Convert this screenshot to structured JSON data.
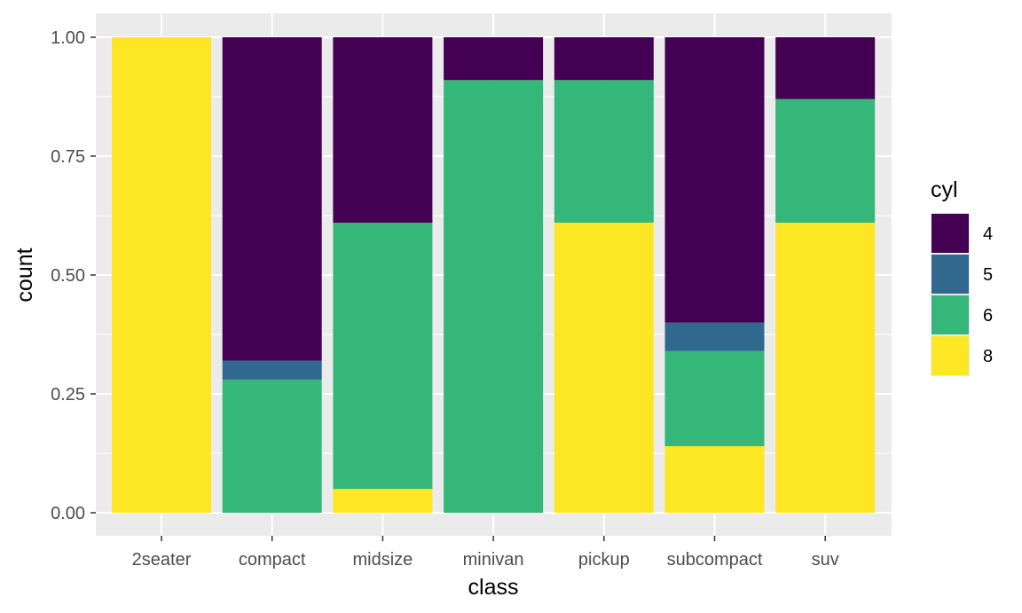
{
  "chart_data": {
    "type": "bar",
    "stacked": true,
    "position": "fill",
    "categories": [
      "2seater",
      "compact",
      "midsize",
      "minivan",
      "pickup",
      "subcompact",
      "suv"
    ],
    "series": [
      {
        "name": "4",
        "color": "#440154",
        "values": [
          0,
          0.68,
          0.39,
          0.09,
          0.09,
          0.6,
          0.13
        ]
      },
      {
        "name": "5",
        "color": "#31688e",
        "values": [
          0,
          0.04,
          0,
          0,
          0,
          0.06,
          0
        ]
      },
      {
        "name": "6",
        "color": "#35b779",
        "values": [
          0,
          0.28,
          0.56,
          0.91,
          0.3,
          0.2,
          0.26
        ]
      },
      {
        "name": "8",
        "color": "#fde725",
        "values": [
          1.0,
          0,
          0.05,
          0,
          0.61,
          0.14,
          0.61
        ]
      }
    ],
    "xlabel": "class",
    "ylabel": "count",
    "ylim": [
      0,
      1
    ],
    "yticks": [
      "0.00",
      "0.25",
      "0.50",
      "0.75",
      "1.00"
    ],
    "legend": {
      "title": "cyl",
      "placement": "right"
    },
    "grid": true,
    "panel_background": "#ebebeb"
  }
}
